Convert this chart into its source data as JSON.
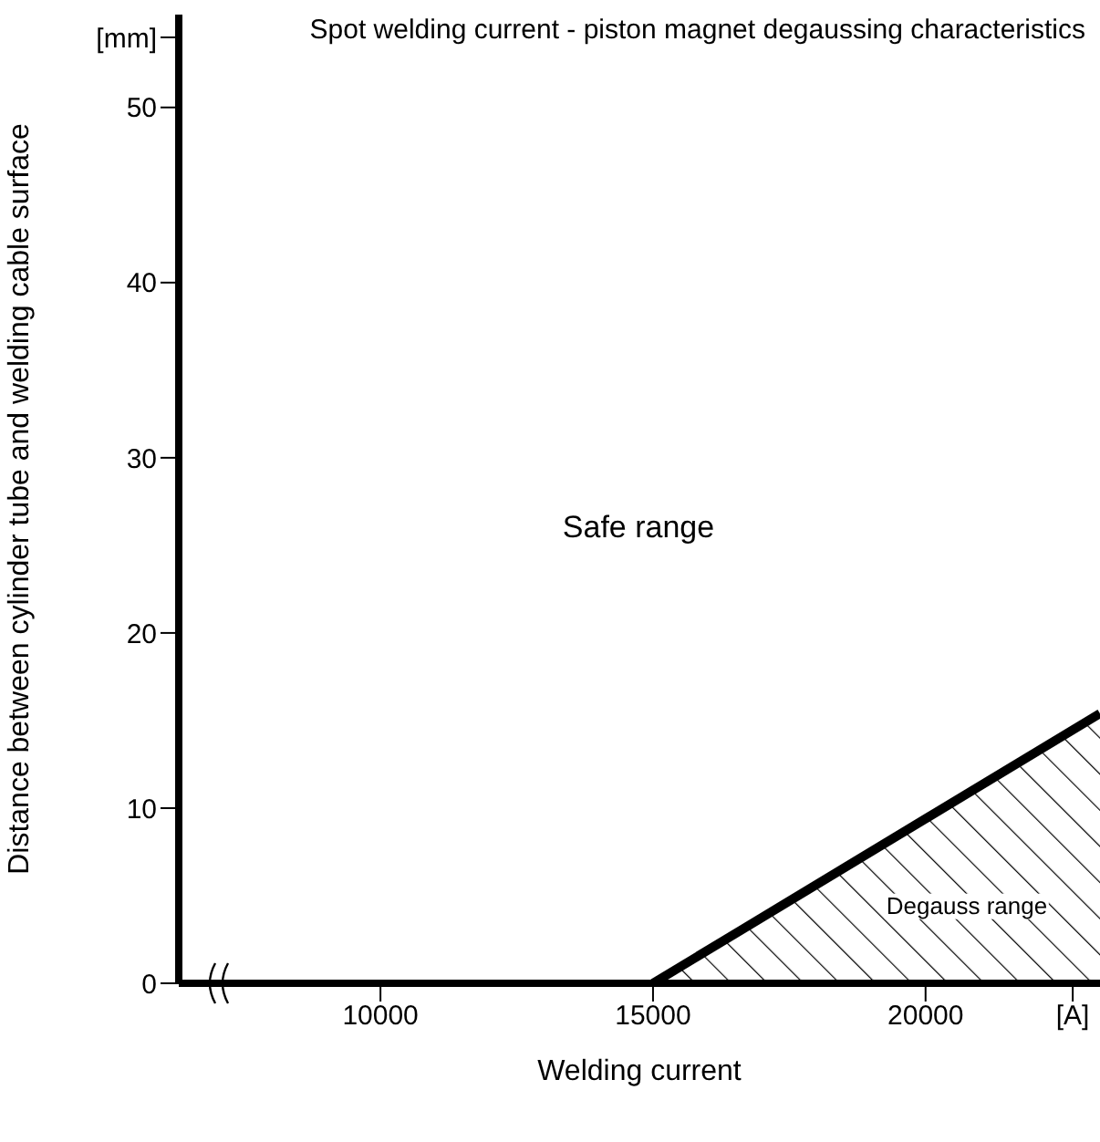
{
  "chart_data": {
    "type": "area",
    "title": "Spot welding current - piston magnet degaussing characteristics",
    "xlabel": "Welding current",
    "ylabel": "Distance between cylinder tube and welding cable surface",
    "x": [
      15000,
      23200
    ],
    "series": [
      {
        "color": "#000000",
        "values": [
          0,
          15.4
        ]
      }
    ],
    "xlim": [
      6300,
      23200
    ],
    "xticks": [
      10000,
      15000,
      20000,
      {
        "value": 22700,
        "label": "[A]"
      }
    ],
    "ylim": [
      0,
      55.3
    ],
    "yticks": [
      0,
      10,
      20,
      30,
      40,
      50,
      {
        "value": 54,
        "label": "[mm]"
      }
    ],
    "grid": false,
    "legend": false,
    "annotations": [
      "Safe range",
      "Degauss range"
    ]
  }
}
